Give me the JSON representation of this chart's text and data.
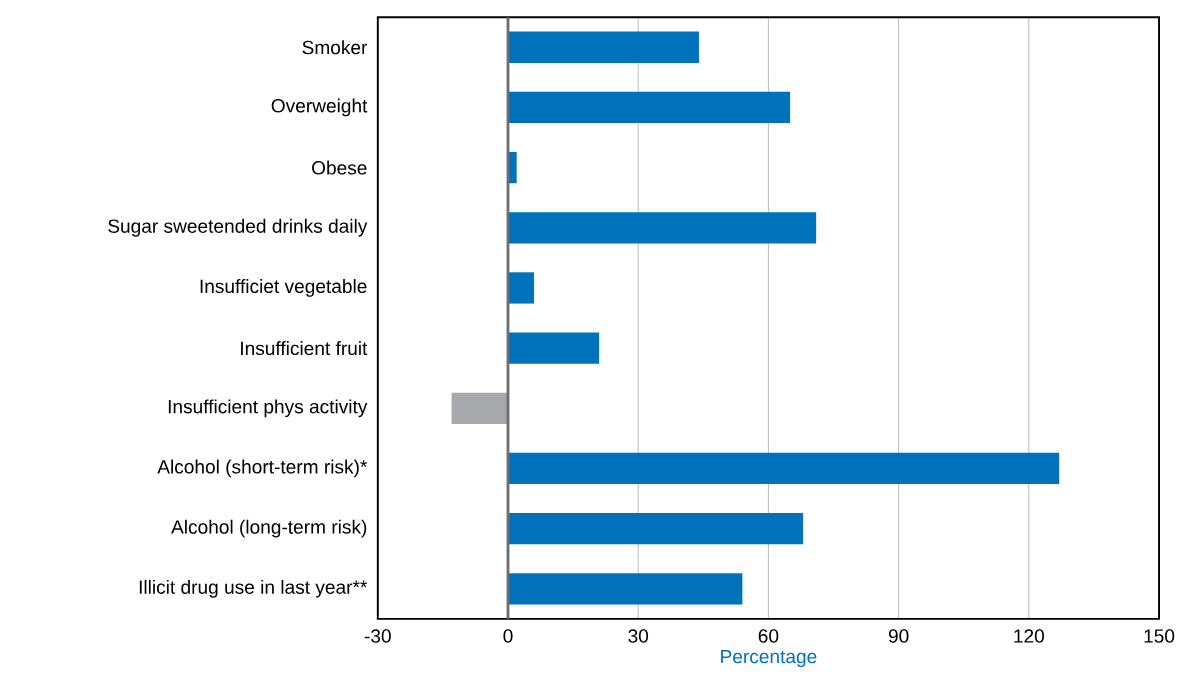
{
  "chart_data": {
    "type": "bar",
    "orientation": "horizontal",
    "xlabel": "Percentage",
    "categories": [
      "Smoker",
      "Overweight",
      "Obese",
      "Sugar sweetended drinks daily",
      "Insufficiet vegetable",
      "Insufficient fruit",
      "Insufficient phys activity",
      "Alcohol (short-term risk)*",
      "Alcohol (long-term risk)",
      "Illicit drug use in last year**"
    ],
    "values": [
      44,
      65,
      2,
      71,
      6,
      21,
      -13,
      127,
      68,
      54
    ],
    "colors": [
      "#0072bc",
      "#0072bc",
      "#0072bc",
      "#0072bc",
      "#0072bc",
      "#0072bc",
      "#a7a9ac",
      "#0072bc",
      "#0072bc",
      "#0072bc"
    ],
    "xlim": [
      -30,
      150
    ],
    "xticks": [
      -30,
      0,
      30,
      60,
      90,
      120,
      150
    ],
    "grid": "x",
    "ref_lines": [
      {
        "axis": "x",
        "value": 0,
        "color": "#6d6e71"
      }
    ]
  }
}
